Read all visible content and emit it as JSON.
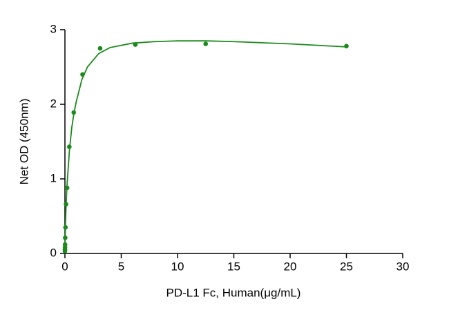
{
  "chart_data": {
    "type": "scatter",
    "xlabel": "PD-L1 Fc, Human(μg/mL)",
    "ylabel": "Net OD (450nm)",
    "x": [
      25,
      12.5,
      6.25,
      3.125,
      1.5625,
      0.78125,
      0.390625,
      0.1953,
      0.0977,
      0.0488,
      0.0244,
      0.0122,
      0.0061,
      0.0031,
      0.0015
    ],
    "series": [
      {
        "color": "#1a8a1a",
        "values": [
          2.78,
          2.81,
          2.8,
          2.75,
          2.4,
          1.89,
          1.43,
          0.88,
          0.66,
          0.35,
          0.21,
          0.12,
          0.08,
          0.05,
          0.03
        ]
      }
    ],
    "fit": {
      "color": "#1a8a1a",
      "x": [
        0,
        0.05,
        0.1,
        0.2,
        0.4,
        0.6,
        0.8,
        1,
        1.5,
        2,
        3,
        4,
        6,
        8,
        10,
        12.5,
        15,
        20,
        25
      ],
      "y": [
        0,
        0.38,
        0.65,
        0.95,
        1.38,
        1.68,
        1.88,
        2.03,
        2.33,
        2.5,
        2.68,
        2.76,
        2.82,
        2.84,
        2.85,
        2.85,
        2.84,
        2.81,
        2.77
      ]
    },
    "xlim": [
      0,
      30
    ],
    "xticks": [
      0,
      5,
      10,
      15,
      20,
      25,
      30
    ],
    "ylim": [
      0,
      3
    ],
    "yticks": [
      0,
      1,
      2,
      3
    ]
  }
}
